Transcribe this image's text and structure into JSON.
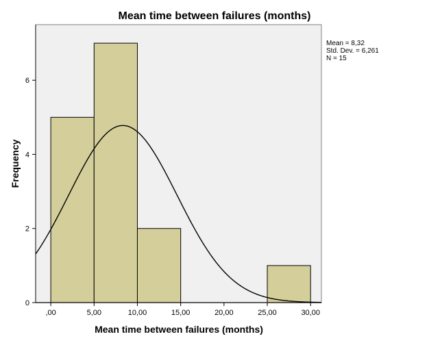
{
  "chart_data": {
    "type": "bar",
    "title": "Mean time between failures (months)",
    "xlabel": "Mean time between failures (months)",
    "ylabel": "Frequency",
    "xlim": [
      -1.75,
      31.25
    ],
    "ylim": [
      0,
      7.5
    ],
    "xticks": [
      0,
      5,
      10,
      15,
      20,
      25,
      30
    ],
    "xtick_labels": [
      ",00",
      "5,00",
      "10,00",
      "15,00",
      "20,00",
      "25,00",
      "30,00"
    ],
    "yticks": [
      0,
      2,
      4,
      6
    ],
    "ytick_labels": [
      "0",
      "2",
      "4",
      "6"
    ],
    "bins": [
      {
        "x0": 0,
        "x1": 5,
        "value": 5
      },
      {
        "x0": 5,
        "x1": 10,
        "value": 7
      },
      {
        "x0": 10,
        "x1": 15,
        "value": 2
      },
      {
        "x0": 15,
        "x1": 20,
        "value": 0
      },
      {
        "x0": 20,
        "x1": 25,
        "value": 0
      },
      {
        "x0": 25,
        "x1": 30,
        "value": 1
      }
    ],
    "normal_curve": {
      "mean": 8.32,
      "sd": 6.261,
      "n": 15,
      "bin_width": 5
    },
    "stats": [
      "Mean = 8,32",
      "Std. Dev. = 6,261",
      "N = 15"
    ],
    "grid": false,
    "legend": "none",
    "colors": {
      "plot_background": "#f0f0f0",
      "bar_fill": "#d3ce9a",
      "bar_stroke": "#000000",
      "curve": "#000000"
    }
  }
}
